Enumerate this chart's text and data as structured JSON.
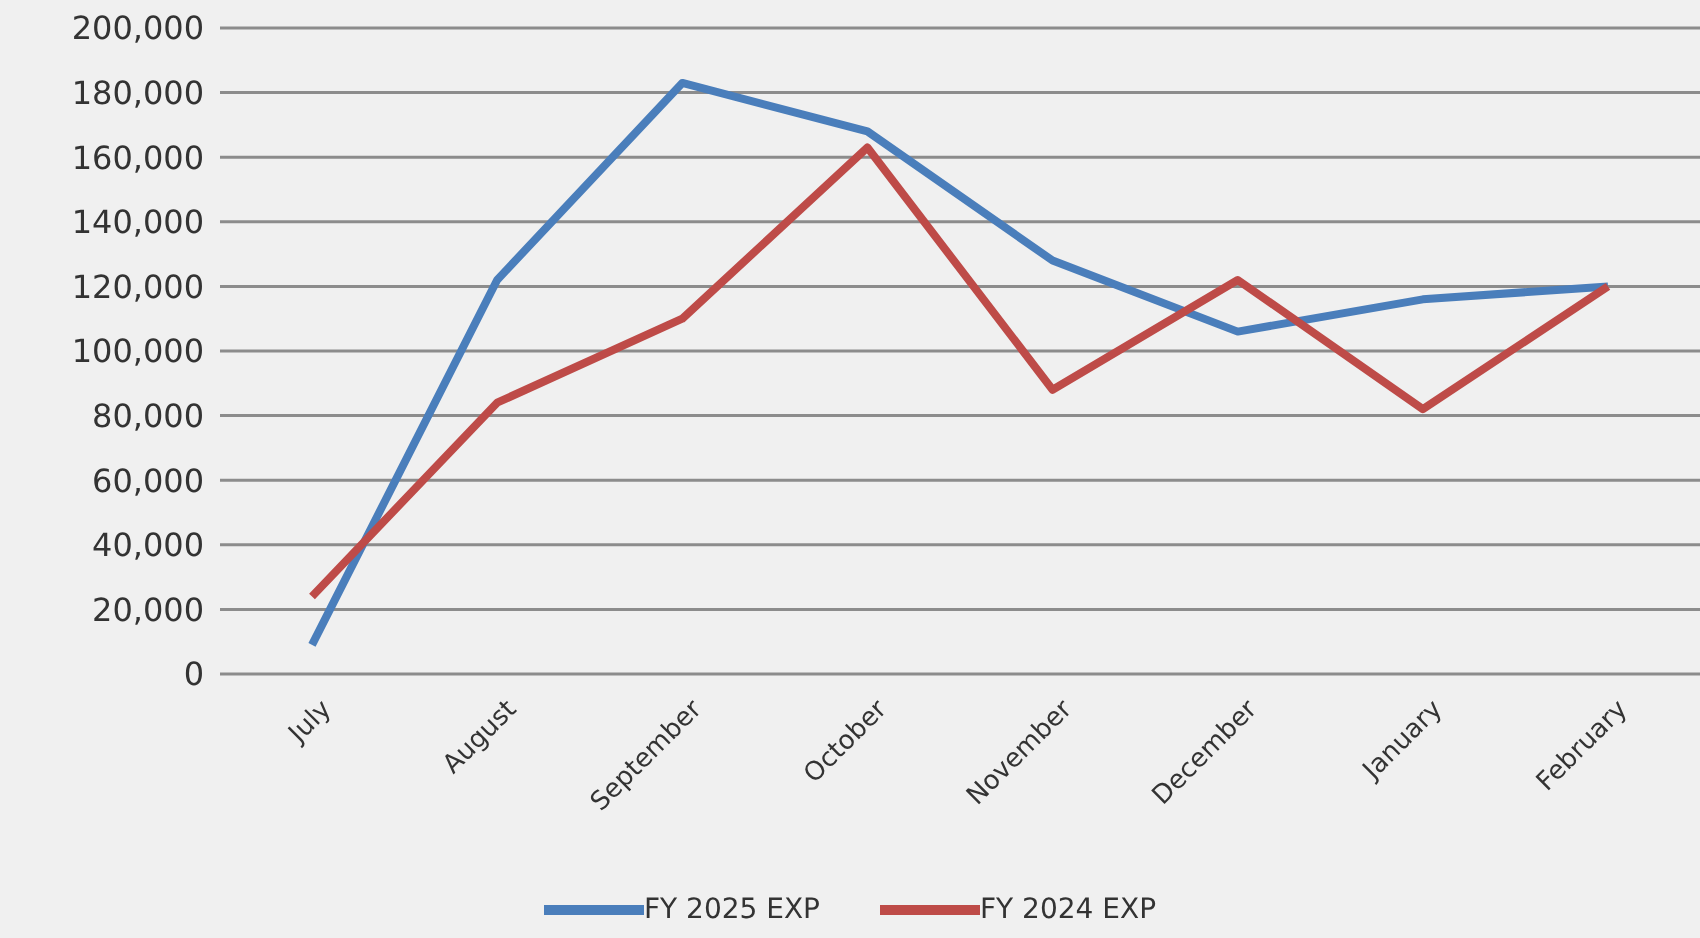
{
  "chart_data": {
    "type": "line",
    "categories": [
      "July",
      "August",
      "September",
      "October",
      "November",
      "December",
      "January",
      "February"
    ],
    "series": [
      {
        "name": "FY 2025 EXP",
        "color": "#4a7ebb",
        "values": [
          9000,
          122000,
          183000,
          168000,
          128000,
          106000,
          116000,
          120000
        ]
      },
      {
        "name": "FY 2024 EXP",
        "color": "#be4b48",
        "values": [
          24000,
          84000,
          110000,
          163000,
          88000,
          122000,
          82000,
          120000
        ]
      }
    ],
    "ylim": [
      0,
      200000
    ],
    "yticks": [
      0,
      {
        "value": 20000,
        "label": "20,000"
      },
      {
        "value": 40000,
        "label": "40,000"
      },
      {
        "value": 60000,
        "label": "60,000"
      },
      {
        "value": 80000,
        "label": "80,000"
      },
      {
        "value": 100000,
        "label": "100,000"
      },
      {
        "value": 120000,
        "label": "120,000"
      },
      {
        "value": 140000,
        "label": "140,000"
      },
      {
        "value": 160000,
        "label": "160,000"
      },
      {
        "value": 180000,
        "label": "180,000"
      },
      {
        "value": 200000,
        "label": "200,000"
      }
    ],
    "grid": "y",
    "legend": "bottom",
    "marker": "none",
    "line_style": "solid"
  }
}
